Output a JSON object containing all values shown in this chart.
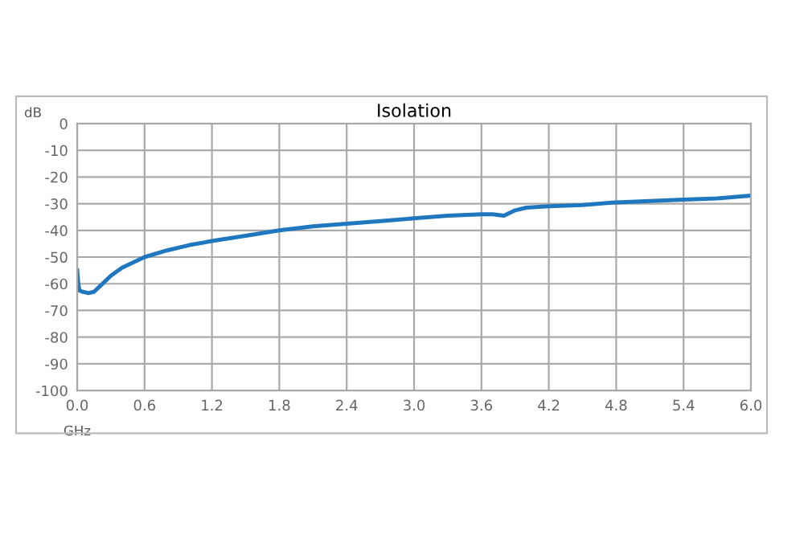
{
  "chart_data": {
    "type": "line",
    "title": "Isolation",
    "xlabel": "GHz",
    "ylabel": "dB",
    "x": [
      0.0,
      0.01,
      0.02,
      0.05,
      0.1,
      0.15,
      0.2,
      0.3,
      0.4,
      0.6,
      0.8,
      1.0,
      1.2,
      1.5,
      1.8,
      2.1,
      2.4,
      2.7,
      3.0,
      3.3,
      3.6,
      3.7,
      3.8,
      3.9,
      4.0,
      4.2,
      4.5,
      4.8,
      5.1,
      5.4,
      5.7,
      6.0
    ],
    "series": [
      {
        "color": "#1f77c0",
        "values": [
          -55,
          -60,
          -62.5,
          -63,
          -63.5,
          -63,
          -61,
          -57,
          -54,
          -50,
          -47.5,
          -45.5,
          -44,
          -42,
          -40,
          -38.5,
          -37.5,
          -36.5,
          -35.5,
          -34.5,
          -34,
          -34,
          -34.5,
          -32.5,
          -31.5,
          -31,
          -30.5,
          -29.5,
          -29,
          -28.5,
          -28,
          -27
        ]
      }
    ],
    "xlim": [
      0.0,
      6.0
    ],
    "xticks": [
      {
        "value": 0,
        "label": "0.0"
      },
      0.6,
      1.2,
      1.8,
      2.4,
      {
        "value": 3,
        "label": "3.0"
      },
      3.6,
      4.2,
      4.8,
      5.4,
      {
        "value": 6,
        "label": "6.0"
      }
    ],
    "ylim": [
      -100,
      0
    ],
    "yticks": [
      -100,
      -90,
      -80,
      -70,
      -60,
      -50,
      -40,
      -30,
      -20,
      -10,
      0
    ],
    "grid": true,
    "legend": false,
    "marker": "none",
    "line_style": "solid"
  }
}
